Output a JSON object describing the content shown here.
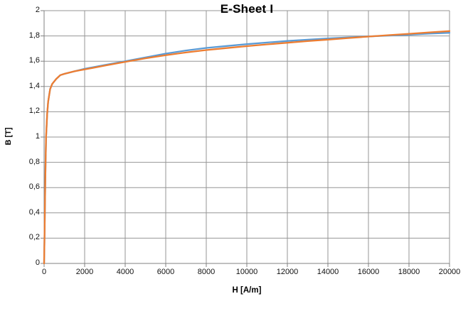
{
  "chart": {
    "title": "E-Sheet I",
    "xlabel": "H [A/m]",
    "ylabel": "B [T]"
  },
  "chart_data": {
    "type": "line",
    "title": "E-Sheet I",
    "xlabel": "H [A/m]",
    "ylabel": "B [T]",
    "xlim": [
      0,
      20000
    ],
    "ylim": [
      0,
      2
    ],
    "grid": true,
    "legend_position": "none",
    "x_tick_labels": [
      "0",
      "2000",
      "4000",
      "6000",
      "8000",
      "10000",
      "12000",
      "14000",
      "16000",
      "18000",
      "20000"
    ],
    "y_tick_labels": [
      "0",
      "0,2",
      "0,4",
      "0,6",
      "0,8",
      "1",
      "1,2",
      "1,4",
      "1,6",
      "1,8",
      "2"
    ],
    "gridline_color": "#969696",
    "axis_color": "#808080",
    "x": [
      0,
      25,
      50,
      75,
      100,
      150,
      200,
      300,
      400,
      600,
      800,
      1000,
      1500,
      2000,
      3000,
      4000,
      5000,
      6000,
      7000,
      8000,
      9000,
      10000,
      11000,
      12000,
      13000,
      14000,
      15000,
      16000,
      17000,
      18000,
      19000,
      20000
    ],
    "series": [
      {
        "color": "#5B9BD5",
        "values": [
          0,
          0.25,
          0.55,
          0.8,
          1.0,
          1.18,
          1.28,
          1.38,
          1.42,
          1.46,
          1.49,
          1.5,
          1.52,
          1.54,
          1.57,
          1.6,
          1.63,
          1.66,
          1.685,
          1.705,
          1.72,
          1.735,
          1.748,
          1.76,
          1.77,
          1.78,
          1.788,
          1.796,
          1.803,
          1.81,
          1.818,
          1.825
        ]
      },
      {
        "color": "#ED7D31",
        "values": [
          0,
          0.25,
          0.55,
          0.8,
          1.0,
          1.18,
          1.28,
          1.38,
          1.42,
          1.46,
          1.49,
          1.5,
          1.52,
          1.535,
          1.565,
          1.595,
          1.623,
          1.648,
          1.669,
          1.688,
          1.704,
          1.719,
          1.733,
          1.746,
          1.759,
          1.771,
          1.783,
          1.795,
          1.806,
          1.817,
          1.828,
          1.838
        ]
      }
    ]
  }
}
